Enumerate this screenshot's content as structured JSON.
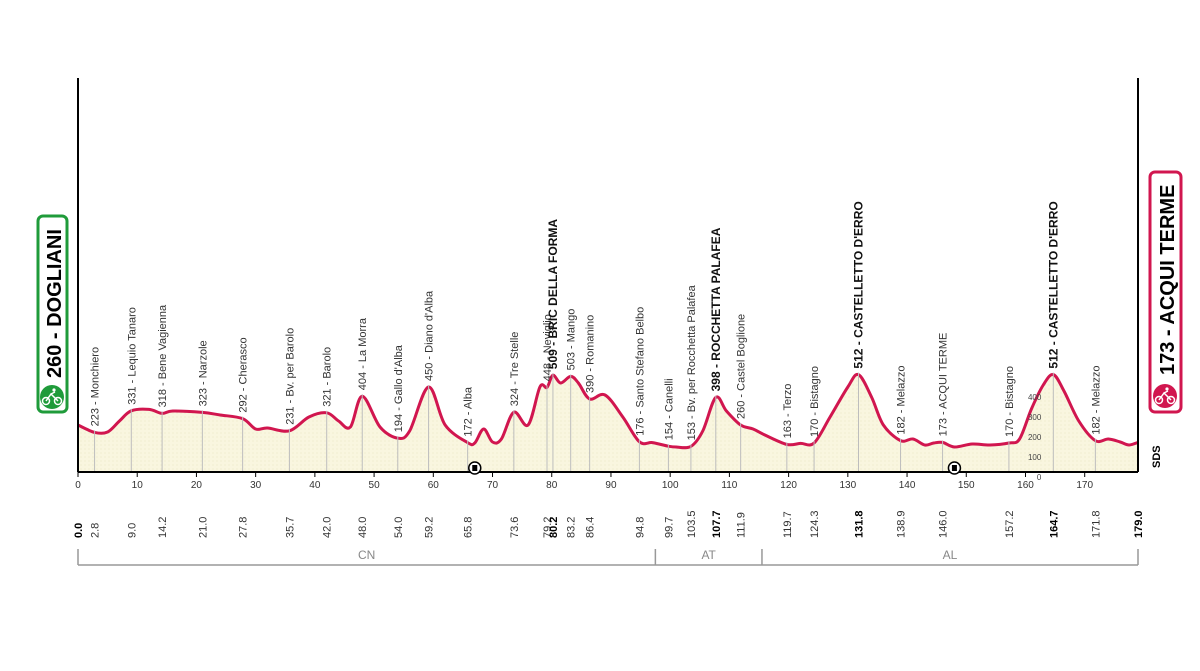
{
  "chart_data": {
    "type": "area",
    "x_unit": "km",
    "xlim": [
      0,
      179
    ],
    "x_ticks": [
      0,
      10,
      20,
      30,
      40,
      50,
      60,
      70,
      80,
      90,
      100,
      110,
      120,
      130,
      140,
      150,
      160,
      170
    ],
    "altitude_scale_labels": [
      "400",
      "300",
      "200",
      "100",
      "0"
    ],
    "start": {
      "altitude": "260",
      "name": "DOGLIANI",
      "km": "0.0"
    },
    "finish": {
      "altitude": "173",
      "name": "ACQUI TERME",
      "km": "179.0"
    },
    "waypoints": [
      {
        "km": 2.8,
        "km_label": "2.8",
        "label": "223 - Monchiero",
        "bold": false
      },
      {
        "km": 9.0,
        "km_label": "9.0",
        "label": "331 - Lequio Tanaro",
        "bold": false
      },
      {
        "km": 14.2,
        "km_label": "14.2",
        "label": "318 - Bene Vagienna",
        "bold": false
      },
      {
        "km": 21.0,
        "km_label": "21.0",
        "label": "323 - Narzole",
        "bold": false
      },
      {
        "km": 27.8,
        "km_label": "27.8",
        "label": "292 - Cherasco",
        "bold": false
      },
      {
        "km": 35.7,
        "km_label": "35.7",
        "label": "231 - Bv. per Barolo",
        "bold": false
      },
      {
        "km": 42.0,
        "km_label": "42.0",
        "label": "321 - Barolo",
        "bold": false
      },
      {
        "km": 48.0,
        "km_label": "48.0",
        "label": "404 - La Morra",
        "bold": false
      },
      {
        "km": 54.0,
        "km_label": "54.0",
        "label": "194 - Gallo d'Alba",
        "bold": false
      },
      {
        "km": 59.2,
        "km_label": "59.2",
        "label": "450 - Diano d'Alba",
        "bold": false
      },
      {
        "km": 65.8,
        "km_label": "65.8",
        "label": "172 - Alba",
        "bold": false
      },
      {
        "km": 73.6,
        "km_label": "73.6",
        "label": "324 - Tre Stelle",
        "bold": false
      },
      {
        "km": 79.2,
        "km_label": "79.2",
        "label": "448 - Neviglio",
        "bold": false
      },
      {
        "km": 80.2,
        "km_label": "80.2",
        "label": "509 - BRIC DELLA FORMA",
        "bold": true
      },
      {
        "km": 83.2,
        "km_label": "83.2",
        "label": "503 - Mango",
        "bold": false
      },
      {
        "km": 86.4,
        "km_label": "86.4",
        "label": "390 - Romanino",
        "bold": false
      },
      {
        "km": 94.8,
        "km_label": "94.8",
        "label": "176 - Santo Stefano Belbo",
        "bold": false
      },
      {
        "km": 99.7,
        "km_label": "99.7",
        "label": "154 - Canelli",
        "bold": false
      },
      {
        "km": 103.5,
        "km_label": "103.5",
        "label": "153 - Bv. per Rocchetta Palafea",
        "bold": false
      },
      {
        "km": 107.7,
        "km_label": "107.7",
        "label": "398 - ROCCHETTA PALAFEA",
        "bold": true
      },
      {
        "km": 111.9,
        "km_label": "111.9",
        "label": "260 - Castel Boglione",
        "bold": false
      },
      {
        "km": 119.7,
        "km_label": "119.7",
        "label": "163 - Terzo",
        "bold": false
      },
      {
        "km": 124.3,
        "km_label": "124.3",
        "label": "170 - Bistagno",
        "bold": false
      },
      {
        "km": 131.8,
        "km_label": "131.8",
        "label": "512 - CASTELLETTO D'ERRO",
        "bold": true
      },
      {
        "km": 138.9,
        "km_label": "138.9",
        "label": "182 - Melazzo",
        "bold": false
      },
      {
        "km": 146.0,
        "km_label": "146.0",
        "label": "173 - ACQUI TERME",
        "bold": false
      },
      {
        "km": 157.2,
        "km_label": "157.2",
        "label": "170 - Bistagno",
        "bold": false
      },
      {
        "km": 164.7,
        "km_label": "164.7",
        "label": "512 - CASTELLETTO D'ERRO",
        "bold": true
      },
      {
        "km": 171.8,
        "km_label": "171.8",
        "label": "182 - Melazzo",
        "bold": false
      }
    ],
    "profile": [
      [
        0,
        260
      ],
      [
        2.8,
        223
      ],
      [
        5,
        225
      ],
      [
        7,
        280
      ],
      [
        9,
        331
      ],
      [
        12,
        338
      ],
      [
        14.2,
        318
      ],
      [
        16,
        330
      ],
      [
        21,
        323
      ],
      [
        24,
        310
      ],
      [
        27.8,
        292
      ],
      [
        30,
        240
      ],
      [
        32,
        245
      ],
      [
        35.7,
        231
      ],
      [
        39,
        300
      ],
      [
        42,
        321
      ],
      [
        44,
        280
      ],
      [
        46,
        250
      ],
      [
        48,
        404
      ],
      [
        51,
        250
      ],
      [
        54,
        194
      ],
      [
        56,
        230
      ],
      [
        59.2,
        450
      ],
      [
        62,
        260
      ],
      [
        65.8,
        172
      ],
      [
        67,
        170
      ],
      [
        68.5,
        240
      ],
      [
        70,
        175
      ],
      [
        71.5,
        190
      ],
      [
        73.6,
        324
      ],
      [
        76,
        260
      ],
      [
        78,
        450
      ],
      [
        79.2,
        448
      ],
      [
        80.2,
        509
      ],
      [
        81.5,
        470
      ],
      [
        83.2,
        503
      ],
      [
        84.5,
        470
      ],
      [
        86.4,
        390
      ],
      [
        89,
        410
      ],
      [
        92,
        300
      ],
      [
        94.8,
        176
      ],
      [
        97,
        172
      ],
      [
        99.7,
        154
      ],
      [
        101,
        150
      ],
      [
        103.5,
        153
      ],
      [
        105.5,
        230
      ],
      [
        107.7,
        398
      ],
      [
        109.5,
        330
      ],
      [
        111.9,
        260
      ],
      [
        114,
        240
      ],
      [
        116,
        210
      ],
      [
        119.7,
        163
      ],
      [
        122,
        168
      ],
      [
        124.3,
        170
      ],
      [
        127,
        300
      ],
      [
        130,
        450
      ],
      [
        131.8,
        512
      ],
      [
        134,
        400
      ],
      [
        136,
        260
      ],
      [
        138.9,
        182
      ],
      [
        141,
        190
      ],
      [
        143,
        160
      ],
      [
        144.5,
        170
      ],
      [
        146,
        173
      ],
      [
        148,
        150
      ],
      [
        151,
        165
      ],
      [
        154,
        160
      ],
      [
        157.2,
        170
      ],
      [
        159,
        190
      ],
      [
        161,
        340
      ],
      [
        163,
        460
      ],
      [
        164.7,
        512
      ],
      [
        166.5,
        430
      ],
      [
        169,
        280
      ],
      [
        171.8,
        182
      ],
      [
        174,
        190
      ],
      [
        176,
        175
      ],
      [
        177.5,
        160
      ],
      [
        179,
        173
      ]
    ],
    "sprints": [
      {
        "km": 67,
        "icon": "intermediate-sprint-icon"
      },
      {
        "km": 148,
        "icon": "bonus-sprint-icon"
      }
    ],
    "regions": [
      {
        "name": "CN",
        "from": 0,
        "to": 97.5
      },
      {
        "name": "AT",
        "from": 97.5,
        "to": 115.5
      },
      {
        "name": "AL",
        "from": 115.5,
        "to": 179
      }
    ],
    "corner_mark": "SDS",
    "colors": {
      "profile_line": "#d1164f",
      "profile_fill": "#f9f6df",
      "start_badge": "#1f9b3a",
      "finish_badge": "#d1164f",
      "vertical_lines": "#bdbdbd"
    }
  }
}
